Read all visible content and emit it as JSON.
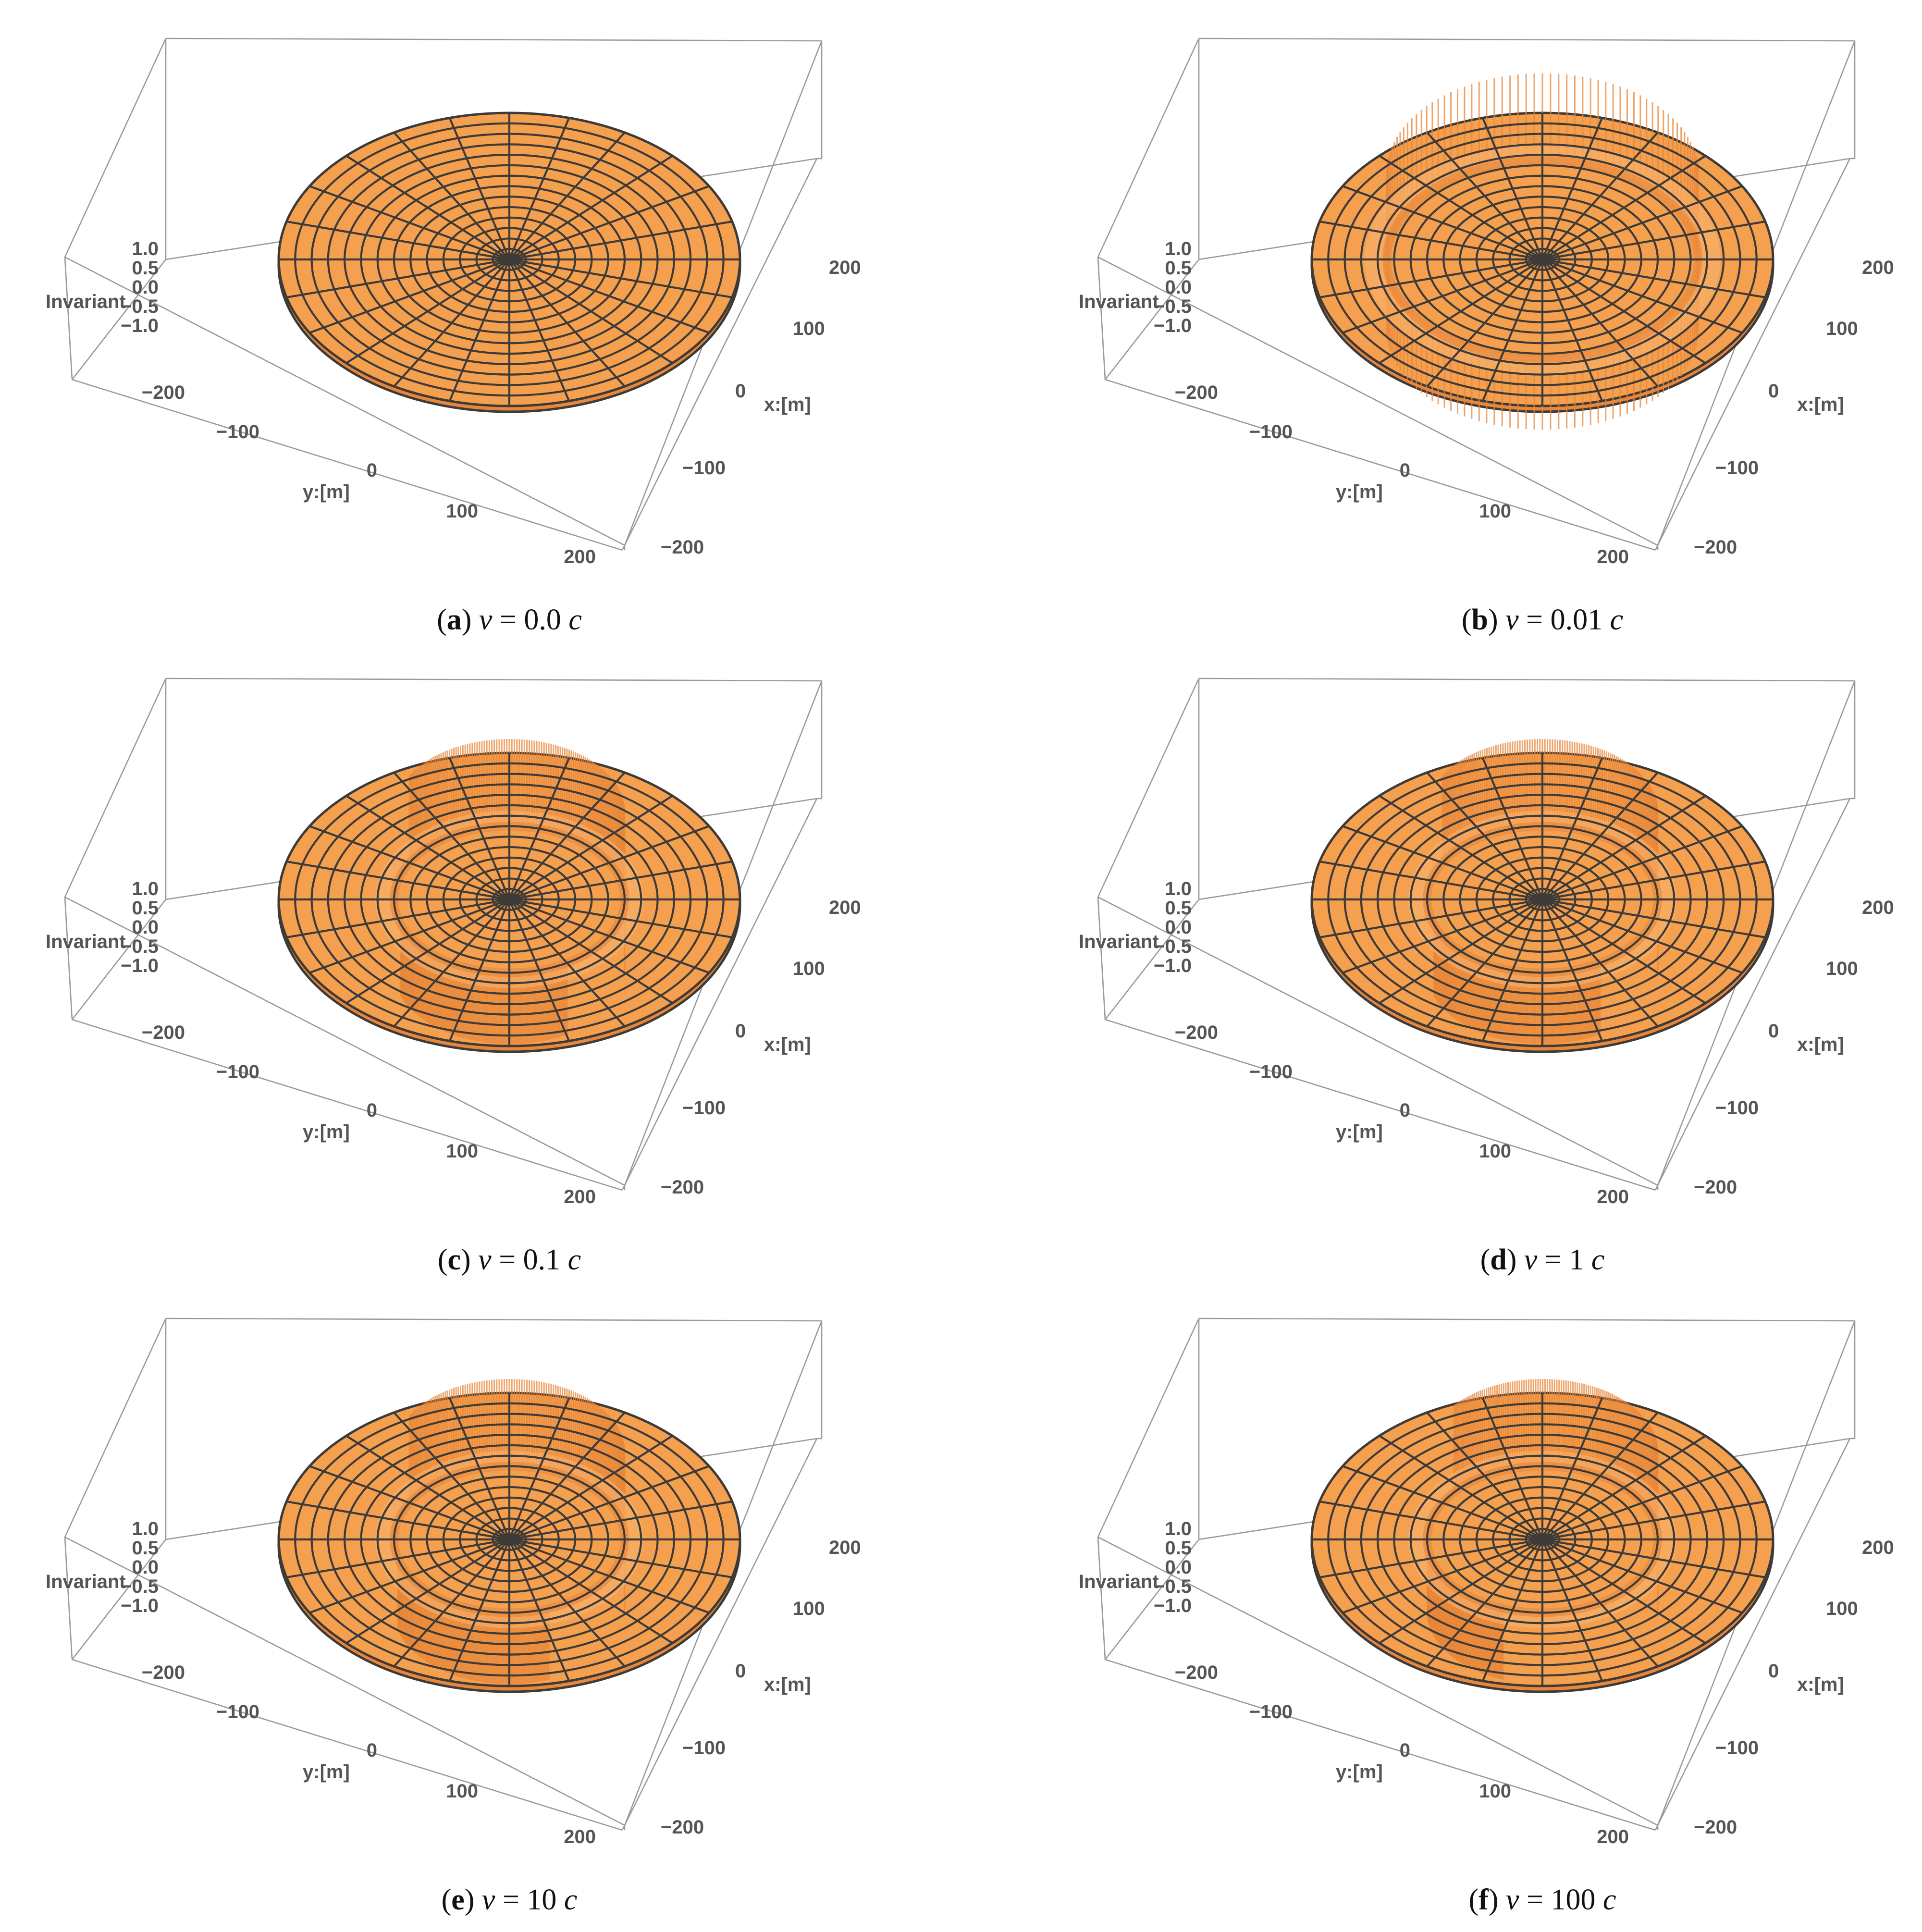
{
  "colors": {
    "surface_fill": "#f5a04e",
    "surface_fill_light": "#f8b36e",
    "mesh_line": "#3d3a38",
    "wall_fill": "#e8873a",
    "box_line": "#9a9a9a",
    "tick_text": "#555555"
  },
  "chart_data": [
    {
      "type": "surface3d",
      "panel": "a",
      "caption": {
        "letter": "a",
        "prefix": "(",
        "suffix": ")",
        "variable": "v",
        "equals": "=",
        "value": "0.0",
        "unit": "c"
      },
      "zlabel": "Invariant",
      "xlabel": "x:[m]",
      "ylabel": "y:[m]",
      "z_ticks": [
        "1.0",
        "0.5",
        "0.0",
        "−0.5",
        "−1.0"
      ],
      "x_ticks": [
        "200",
        "100",
        "0",
        "−100",
        "−200"
      ],
      "y_ticks": [
        "−200",
        "−100",
        "0",
        "100",
        "200"
      ],
      "xlim": [
        -200,
        200
      ],
      "ylim": [
        -200,
        200
      ],
      "zlim": [
        -1,
        1
      ],
      "disk_radius": 200,
      "wall_radius": 0,
      "wall_arcs": []
    },
    {
      "type": "surface3d",
      "panel": "b",
      "caption": {
        "letter": "b",
        "prefix": "(",
        "suffix": ")",
        "variable": "v",
        "equals": "=",
        "value": "0.01",
        "unit": "c"
      },
      "zlabel": "Invariant",
      "xlabel": "x:[m]",
      "ylabel": "y:[m]",
      "z_ticks": [
        "1.0",
        "0.5",
        "0.0",
        "−0.5",
        "−1.0"
      ],
      "x_ticks": [
        "200",
        "100",
        "0",
        "−100",
        "−200"
      ],
      "y_ticks": [
        "−200",
        "−100",
        "0",
        "100",
        "200"
      ],
      "xlim": [
        -200,
        200
      ],
      "ylim": [
        -200,
        200
      ],
      "zlim": [
        -1,
        1
      ],
      "disk_radius": 200,
      "wall_radius": 135,
      "wall_arcs": [
        [
          0,
          360
        ]
      ]
    },
    {
      "type": "surface3d",
      "panel": "c",
      "caption": {
        "letter": "c",
        "prefix": "(",
        "suffix": ")",
        "variable": "v",
        "equals": "=",
        "value": "0.1",
        "unit": "c"
      },
      "zlabel": "Invariant",
      "xlabel": "x:[m]",
      "ylabel": "y:[m]",
      "z_ticks": [
        "1.0",
        "0.5",
        "0.0",
        "−0.5",
        "−1.0"
      ],
      "x_ticks": [
        "200",
        "100",
        "0",
        "−100",
        "−200"
      ],
      "y_ticks": [
        "−200",
        "−100",
        "0",
        "100",
        "200"
      ],
      "xlim": [
        -200,
        200
      ],
      "ylim": [
        -200,
        200
      ],
      "zlim": [
        -1,
        1
      ],
      "disk_radius": 200,
      "wall_radius": 100,
      "wall_arcs": [
        [
          200,
          300
        ],
        [
          0,
          150
        ]
      ]
    },
    {
      "type": "surface3d",
      "panel": "d",
      "caption": {
        "letter": "d",
        "prefix": "(",
        "suffix": ")",
        "variable": "v",
        "equals": "=",
        "value": "1",
        "unit": "c"
      },
      "zlabel": "Invariant",
      "xlabel": "x:[m]",
      "ylabel": "y:[m]",
      "z_ticks": [
        "1.0",
        "0.5",
        "0.0",
        "−0.5",
        "−1.0"
      ],
      "x_ticks": [
        "200",
        "100",
        "0",
        "−100",
        "−200"
      ],
      "y_ticks": [
        "−200",
        "−100",
        "0",
        "100",
        "200"
      ],
      "xlim": [
        -200,
        200
      ],
      "ylim": [
        -200,
        200
      ],
      "zlim": [
        -1,
        1
      ],
      "disk_radius": 200,
      "wall_radius": 100,
      "wall_arcs": [
        [
          200,
          300
        ],
        [
          0,
          150
        ]
      ]
    },
    {
      "type": "surface3d",
      "panel": "e",
      "caption": {
        "letter": "e",
        "prefix": "(",
        "suffix": ")",
        "variable": "v",
        "equals": "=",
        "value": "10",
        "unit": "c"
      },
      "zlabel": "Invariant",
      "xlabel": "x:[m]",
      "ylabel": "y:[m]",
      "z_ticks": [
        "1.0",
        "0.5",
        "0.0",
        "−0.5",
        "−1.0"
      ],
      "x_ticks": [
        "200",
        "100",
        "0",
        "−100",
        "−200"
      ],
      "y_ticks": [
        "−200",
        "−100",
        "0",
        "100",
        "200"
      ],
      "xlim": [
        -200,
        200
      ],
      "ylim": [
        -200,
        200
      ],
      "zlim": [
        -1,
        1
      ],
      "disk_radius": 200,
      "wall_radius": 100,
      "wall_arcs": [
        [
          195,
          290
        ],
        [
          0,
          150
        ]
      ]
    },
    {
      "type": "surface3d",
      "panel": "f",
      "caption": {
        "letter": "f",
        "prefix": "(",
        "suffix": ")",
        "variable": "v",
        "equals": "=",
        "value": "100",
        "unit": "c"
      },
      "zlabel": "Invariant",
      "xlabel": "x:[m]",
      "ylabel": "y:[m]",
      "z_ticks": [
        "1.0",
        "0.5",
        "0.0",
        "−0.5",
        "−1.0"
      ],
      "x_ticks": [
        "200",
        "100",
        "0",
        "−100",
        "−200"
      ],
      "y_ticks": [
        "−200",
        "−100",
        "0",
        "100",
        "200"
      ],
      "xlim": [
        -200,
        200
      ],
      "ylim": [
        -200,
        200
      ],
      "zlim": [
        -1,
        1
      ],
      "disk_radius": 200,
      "wall_radius": 100,
      "wall_arcs": [
        [
          185,
          250
        ],
        [
          0,
          140
        ]
      ]
    }
  ]
}
